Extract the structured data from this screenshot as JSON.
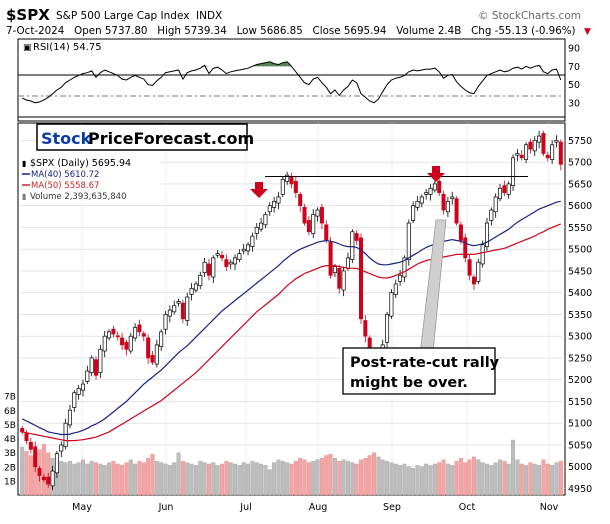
{
  "header": {
    "symbol": "$SPX",
    "description": "S&P 500 Large Cap Index",
    "exchange": "INDX",
    "watermark": "© StockCharts.com",
    "quote_line": "7-Oct-2024   Open 5737.80   High 5739.34   Low 5686.85   Close 5695.94   Volume 2.4B   Chg -55.13 (-0.96%)",
    "chg_arrow": "▼"
  },
  "rsi_panel": {
    "label": "RSI(14) 54.75",
    "ticks": [
      90,
      70,
      50,
      30
    ]
  },
  "brand": {
    "part1": "Stock",
    "part2": "PriceForecast.com"
  },
  "legend": [
    {
      "label": "$SPX (Daily) 5695.94",
      "color": "#000000"
    },
    {
      "label": "MA(40) 5610.72",
      "color": "#1a237e"
    },
    {
      "label": "MA(50) 5558.67",
      "color": "#c62828"
    },
    {
      "label": "Volume 2,393,635,840",
      "color": "#777777"
    }
  ],
  "annotation": {
    "line1": "Post-rate-cut rally",
    "line2": "might be over."
  },
  "colors": {
    "up": "#000000",
    "down": "#d0021b",
    "ma40": "#1a237e",
    "ma50": "#d0021b",
    "rsi_fill": "#3a6b35",
    "arrow": "#d0021b",
    "brand_blue": "#0b3da8",
    "volume_up": "#bdbdbd",
    "volume_down": "#f2a5a5"
  },
  "chart_data": {
    "type": "candlestick",
    "price_ticks": [
      5750,
      5700,
      5650,
      5600,
      5550,
      5500,
      5450,
      5400,
      5350,
      5300,
      5250,
      5200,
      5150,
      5100,
      5050,
      5000,
      4950
    ],
    "volume_ticks": [
      "7B",
      "6B",
      "5B",
      "4B",
      "3B",
      "2B",
      "1B"
    ],
    "x_labels": [
      "May",
      "Jun",
      "Jul",
      "Aug",
      "Sep",
      "Oct",
      "Nov"
    ],
    "ylim": [
      4935,
      5790
    ],
    "resistance_level": 5667,
    "close": [
      5080,
      5060,
      5040,
      5000,
      4980,
      4970,
      4960,
      4990,
      5030,
      5050,
      5100,
      5130,
      5170,
      5180,
      5190,
      5220,
      5250,
      5210,
      5270,
      5300,
      5310,
      5305,
      5300,
      5280,
      5270,
      5300,
      5320,
      5310,
      5300,
      5250,
      5240,
      5280,
      5310,
      5350,
      5360,
      5370,
      5380,
      5340,
      5390,
      5410,
      5420,
      5440,
      5470,
      5440,
      5480,
      5490,
      5480,
      5460,
      5470,
      5480,
      5490,
      5500,
      5510,
      5530,
      5550,
      5560,
      5580,
      5600,
      5610,
      5620,
      5660,
      5670,
      5650,
      5630,
      5600,
      5560,
      5540,
      5580,
      5590,
      5560,
      5520,
      5440,
      5460,
      5410,
      5450,
      5480,
      5540,
      5520,
      5340,
      5300,
      5240,
      5180,
      5200,
      5280,
      5350,
      5400,
      5420,
      5440,
      5480,
      5560,
      5600,
      5610,
      5620,
      5630,
      5640,
      5650,
      5630,
      5590,
      5610,
      5620,
      5560,
      5520,
      5480,
      5440,
      5420,
      5470,
      5510,
      5560,
      5590,
      5620,
      5640,
      5630,
      5650,
      5710,
      5720,
      5710,
      5740,
      5730,
      5750,
      5760,
      5720,
      5710,
      5740,
      5750,
      5695
    ],
    "ma40": [
      5110,
      5105,
      5100,
      5095,
      5090,
      5085,
      5080,
      5078,
      5076,
      5074,
      5074,
      5075,
      5078,
      5080,
      5084,
      5088,
      5094,
      5098,
      5104,
      5110,
      5118,
      5126,
      5134,
      5142,
      5150,
      5160,
      5170,
      5180,
      5190,
      5198,
      5206,
      5214,
      5222,
      5232,
      5242,
      5252,
      5262,
      5270,
      5278,
      5288,
      5298,
      5308,
      5318,
      5328,
      5338,
      5348,
      5358,
      5366,
      5374,
      5382,
      5390,
      5398,
      5406,
      5414,
      5422,
      5430,
      5438,
      5446,
      5454,
      5462,
      5472,
      5480,
      5488,
      5494,
      5500,
      5504,
      5508,
      5512,
      5516,
      5518,
      5520,
      5518,
      5516,
      5512,
      5508,
      5506,
      5506,
      5504,
      5498,
      5490,
      5480,
      5472,
      5466,
      5464,
      5464,
      5466,
      5468,
      5470,
      5474,
      5480,
      5486,
      5492,
      5498,
      5504,
      5508,
      5512,
      5516,
      5518,
      5520,
      5522,
      5520,
      5518,
      5514,
      5510,
      5508,
      5510,
      5512,
      5516,
      5522,
      5528,
      5534,
      5540,
      5546,
      5554,
      5562,
      5568,
      5574,
      5580,
      5586,
      5592,
      5596,
      5600,
      5604,
      5608,
      5610
    ],
    "ma50": [
      5080,
      5078,
      5076,
      5074,
      5072,
      5070,
      5068,
      5066,
      5064,
      5062,
      5060,
      5060,
      5060,
      5061,
      5062,
      5064,
      5066,
      5068,
      5072,
      5076,
      5080,
      5086,
      5092,
      5098,
      5104,
      5110,
      5116,
      5122,
      5128,
      5134,
      5140,
      5146,
      5152,
      5160,
      5168,
      5176,
      5184,
      5192,
      5200,
      5208,
      5216,
      5226,
      5236,
      5246,
      5256,
      5266,
      5276,
      5286,
      5296,
      5306,
      5316,
      5326,
      5336,
      5346,
      5356,
      5364,
      5372,
      5380,
      5388,
      5396,
      5406,
      5416,
      5424,
      5432,
      5438,
      5444,
      5448,
      5452,
      5456,
      5460,
      5462,
      5462,
      5462,
      5460,
      5458,
      5456,
      5456,
      5456,
      5452,
      5448,
      5444,
      5440,
      5436,
      5434,
      5434,
      5436,
      5440,
      5444,
      5448,
      5454,
      5460,
      5466,
      5470,
      5474,
      5476,
      5478,
      5480,
      5482,
      5484,
      5486,
      5488,
      5488,
      5488,
      5488,
      5488,
      5490,
      5492,
      5494,
      5496,
      5498,
      5500,
      5502,
      5506,
      5510,
      5514,
      5518,
      5522,
      5526,
      5530,
      5536,
      5540,
      5546,
      5550,
      5554,
      5558
    ],
    "volume_b": [
      3.4,
      3.1,
      2.8,
      2.9,
      3.2,
      3.6,
      3.0,
      2.6,
      2.5,
      2.4,
      2.3,
      2.4,
      2.2,
      2.3,
      2.5,
      2.2,
      2.4,
      2.3,
      2.2,
      2.1,
      2.3,
      2.4,
      2.2,
      2.1,
      2.3,
      2.5,
      2.2,
      2.4,
      2.3,
      2.6,
      2.9,
      2.4,
      2.3,
      2.2,
      2.1,
      2.3,
      3.0,
      2.4,
      2.3,
      2.2,
      2.1,
      2.4,
      2.3,
      2.2,
      2.3,
      2.1,
      2.2,
      2.4,
      2.3,
      2.2,
      2.1,
      2.3,
      2.2,
      2.4,
      2.3,
      2.2,
      2.1,
      1.8,
      2.3,
      2.5,
      2.4,
      2.3,
      2.2,
      2.4,
      2.6,
      2.5,
      2.3,
      2.4,
      2.5,
      2.6,
      2.8,
      2.9,
      2.6,
      2.4,
      2.5,
      2.4,
      2.3,
      2.2,
      2.5,
      2.6,
      2.8,
      3.0,
      2.7,
      2.5,
      2.4,
      2.3,
      2.2,
      2.1,
      2.2,
      2.0,
      1.9,
      2.1,
      2.0,
      2.2,
      2.1,
      2.2,
      2.3,
      2.5,
      2.2,
      2.1,
      2.4,
      2.6,
      2.3,
      2.5,
      2.7,
      2.5,
      2.3,
      2.2,
      2.1,
      2.3,
      2.5,
      2.4,
      2.2,
      3.9,
      2.5,
      2.2,
      2.1,
      2.3,
      2.2,
      2.1,
      2.5,
      2.2,
      2.1,
      2.3,
      2.4
    ],
    "rsi": [
      35,
      33,
      32,
      30,
      31,
      33,
      36,
      40,
      44,
      47,
      52,
      55,
      58,
      60,
      62,
      63,
      65,
      58,
      63,
      66,
      64,
      62,
      60,
      56,
      55,
      58,
      60,
      58,
      56,
      50,
      49,
      54,
      58,
      63,
      64,
      65,
      66,
      56,
      63,
      65,
      66,
      68,
      71,
      62,
      68,
      69,
      66,
      62,
      64,
      65,
      66,
      67,
      68,
      70,
      72,
      73,
      74,
      75,
      73,
      72,
      74,
      75,
      70,
      64,
      58,
      52,
      50,
      56,
      58,
      52,
      47,
      40,
      44,
      38,
      44,
      48,
      55,
      52,
      40,
      36,
      32,
      30,
      34,
      42,
      50,
      55,
      57,
      58,
      60,
      64,
      66,
      65,
      66,
      67,
      67,
      68,
      64,
      57,
      60,
      61,
      53,
      48,
      44,
      41,
      40,
      48,
      54,
      60,
      62,
      64,
      66,
      64,
      65,
      68,
      69,
      67,
      70,
      68,
      70,
      71,
      64,
      62,
      66,
      67,
      55
    ]
  }
}
